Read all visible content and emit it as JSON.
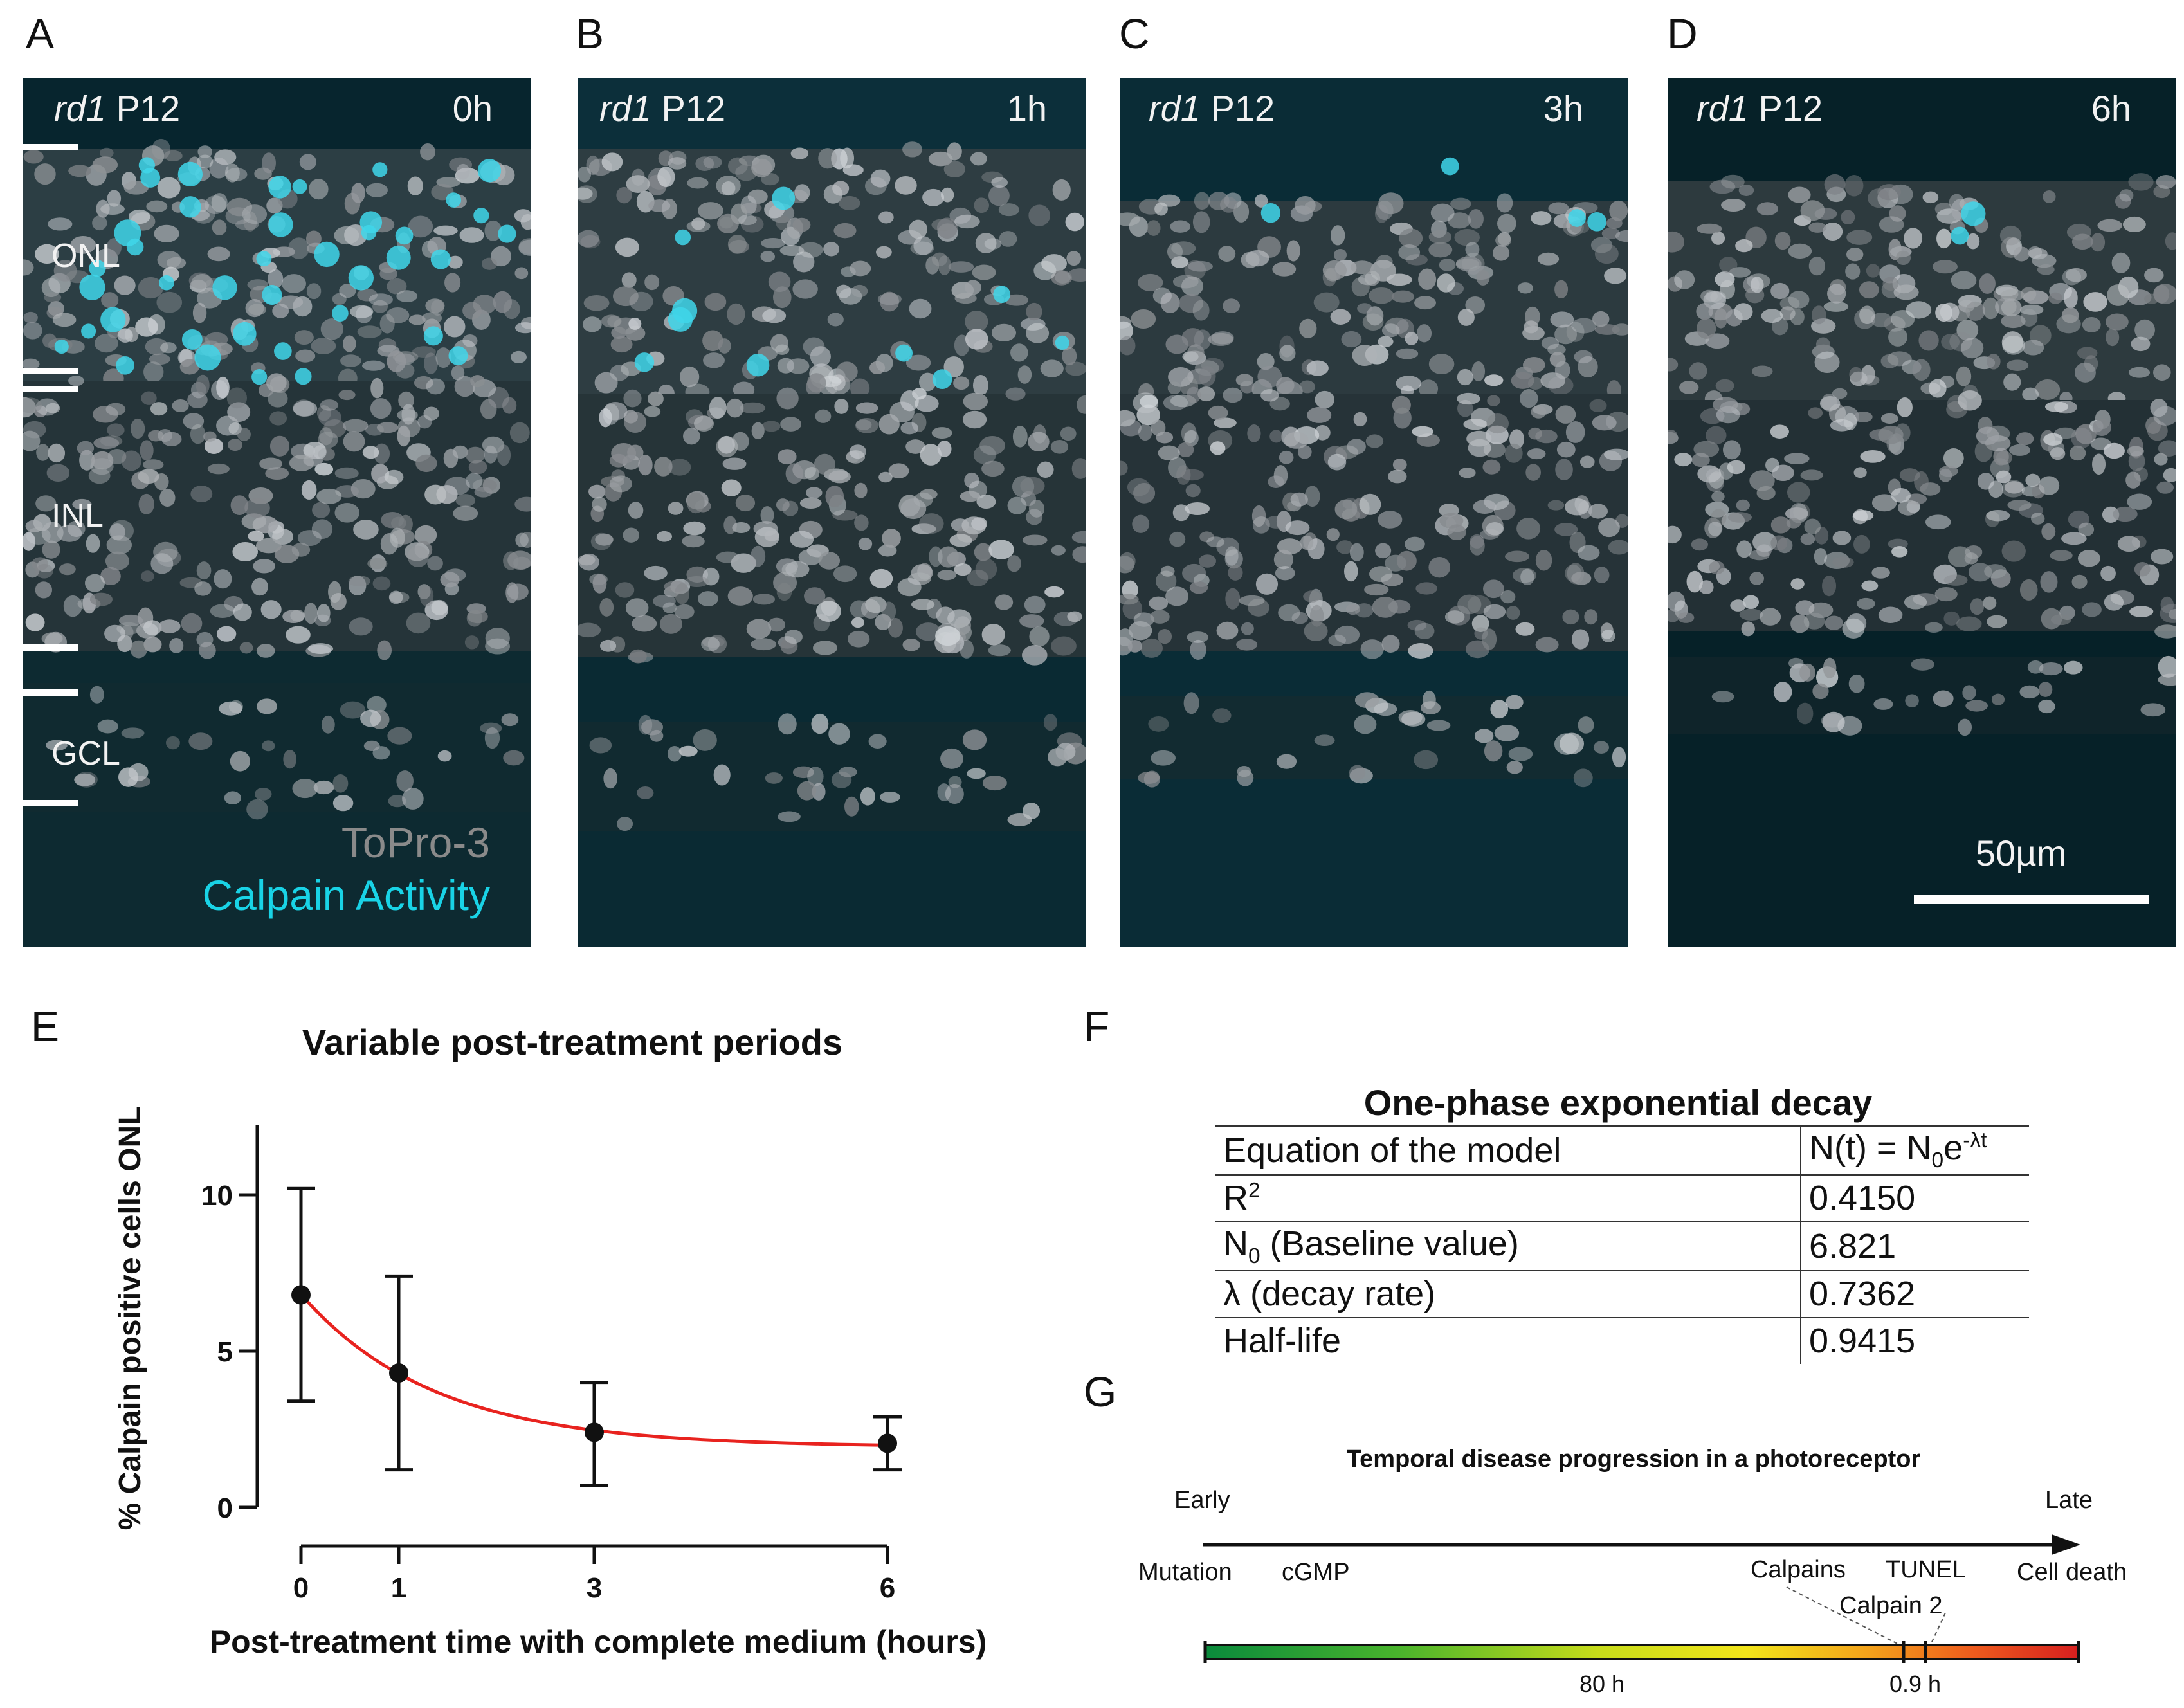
{
  "panels": {
    "A": {
      "label": "A",
      "sample_italic": "rd1",
      "sample": " P12",
      "time": "0h"
    },
    "B": {
      "label": "B",
      "sample_italic": "rd1",
      "sample": " P12",
      "time": "1h"
    },
    "C": {
      "label": "C",
      "sample_italic": "rd1",
      "sample": " P12",
      "time": "3h"
    },
    "D": {
      "label": "D",
      "sample_italic": "rd1",
      "sample": " P12",
      "time": "6h"
    }
  },
  "layers": {
    "onl": "ONL",
    "inl": "INL",
    "gcl": "GCL"
  },
  "stains": {
    "topro": "ToPro-3",
    "calpain": "Calpain Activity",
    "topro_color": "#8a8a8a",
    "calpain_color": "#19d3e6"
  },
  "scale_bar": "50µm",
  "panel_E": {
    "label": "E"
  },
  "panel_F": {
    "label": "F",
    "title": "One-phase exponential decay",
    "rows": [
      {
        "name": "Equation of the model",
        "value": "N(t) = N0e-λt"
      },
      {
        "name": "R2",
        "value": "0.4150"
      },
      {
        "name": "N0 (Baseline value)",
        "value": "6.821"
      },
      {
        "name": "λ (decay rate)",
        "value": "0.7362"
      },
      {
        "name": "Half-life",
        "value": "0.9415"
      }
    ]
  },
  "panel_G": {
    "label": "G",
    "title": "Temporal disease progression in a photoreceptor",
    "early": "Early",
    "late": "Late",
    "events": [
      "Mutation",
      "cGMP",
      "Calpains",
      "TUNEL",
      "Cell death"
    ],
    "calpain2": "Calpain 2",
    "durations": [
      "80 h",
      "0.9 h"
    ]
  },
  "chart_data": {
    "type": "scatter",
    "title": "Variable post-treatment periods",
    "xlabel": "Post-treatment time with complete medium (hours)",
    "ylabel": "% Calpain positive cells ONL",
    "x": [
      0,
      1,
      3,
      6
    ],
    "y": [
      6.8,
      4.3,
      2.4,
      2.05
    ],
    "error_low": [
      3.4,
      1.2,
      0.7,
      1.2
    ],
    "error_high": [
      10.2,
      7.4,
      4.0,
      2.9
    ],
    "xticks": [
      "0",
      "1",
      "3",
      "6"
    ],
    "yticks": [
      "0",
      "5",
      "10"
    ],
    "ylim": [
      0,
      12
    ],
    "xlim": [
      0,
      6
    ],
    "fit": {
      "model": "one-phase exponential decay",
      "N0": 6.821,
      "lambda": 0.7362,
      "plateau": 1.93,
      "color": "#e8231f"
    }
  }
}
